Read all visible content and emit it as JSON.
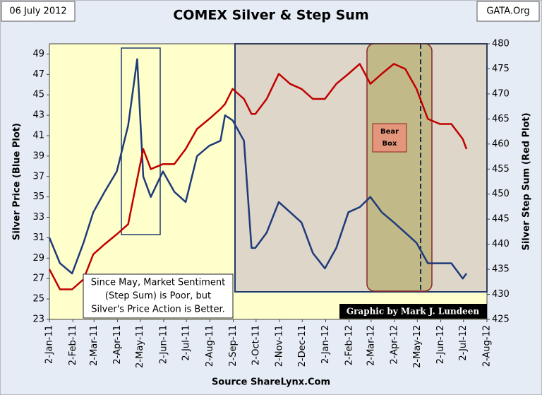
{
  "chart_data": {
    "type": "line",
    "title": "COMEX Silver & Step Sum",
    "date_label": "06 July 2012",
    "source_label": "GATA.Org",
    "x_label": "Source ShareLynx.Com",
    "y_label": "Silver Price (Blue Plot)",
    "y2_label": "Silver Step Sum (Red Plot)",
    "annotations": {
      "bear_box": [
        "Bear",
        "Box"
      ],
      "note": [
        "Since May, Market Sentiment",
        "(Step Sum) is Poor, but",
        "Silver's Price Action is Better."
      ],
      "credit": "Graphic by Mark J. Lundeen"
    },
    "x": [
      "2011-01-02",
      "2011-01-16",
      "2011-02-01",
      "2011-02-16",
      "2011-03-01",
      "2011-03-16",
      "2011-04-01",
      "2011-04-16",
      "2011-04-28",
      "2011-05-06",
      "2011-05-16",
      "2011-06-01",
      "2011-06-16",
      "2011-07-01",
      "2011-07-16",
      "2011-08-01",
      "2011-08-16",
      "2011-08-22",
      "2011-09-01",
      "2011-09-16",
      "2011-09-26",
      "2011-10-01",
      "2011-10-16",
      "2011-11-01",
      "2011-11-16",
      "2011-12-01",
      "2011-12-16",
      "2012-01-01",
      "2012-01-16",
      "2012-02-01",
      "2012-02-16",
      "2012-03-01",
      "2012-03-16",
      "2012-04-01",
      "2012-04-16",
      "2012-05-01",
      "2012-05-16",
      "2012-06-01",
      "2012-06-16",
      "2012-07-01",
      "2012-07-06"
    ],
    "series": [
      {
        "name": "Silver Price",
        "color": "#1f3a7a",
        "axis": "y",
        "values": [
          31,
          28.5,
          27.5,
          30.5,
          33.5,
          35.5,
          37.5,
          42,
          48.5,
          37,
          35,
          37.5,
          35.5,
          34.5,
          39,
          40,
          40.5,
          43,
          42.5,
          40.5,
          30,
          30,
          31.5,
          34.5,
          33.5,
          32.5,
          29.5,
          28,
          30,
          33.5,
          34,
          35,
          33.5,
          32.5,
          31.5,
          30.5,
          28.5,
          28.5,
          28.5,
          27,
          27.5
        ]
      },
      {
        "name": "Silver Step Sum",
        "color": "#c00000",
        "axis": "y2",
        "values": [
          435,
          431,
          431,
          433,
          438,
          440,
          442,
          444,
          453,
          459,
          455,
          456,
          456,
          459,
          463,
          465,
          467,
          468,
          471,
          469,
          466,
          466,
          469,
          474,
          472,
          471,
          469,
          469,
          472,
          474,
          476,
          472,
          474,
          476,
          475,
          471,
          465,
          464,
          464,
          461,
          459
        ]
      }
    ],
    "xlim": [
      "2011-01-02",
      "2012-08-02"
    ],
    "xticks": [
      {
        "value": "2011-01-02",
        "label": "2-Jan-11"
      },
      {
        "value": "2011-02-02",
        "label": "2-Feb-11"
      },
      {
        "value": "2011-03-02",
        "label": "2-Mar-11"
      },
      {
        "value": "2011-04-02",
        "label": "2-Apr-11"
      },
      {
        "value": "2011-05-02",
        "label": "2-May-11"
      },
      {
        "value": "2011-06-02",
        "label": "2-Jun-11"
      },
      {
        "value": "2011-07-02",
        "label": "2-Jul-11"
      },
      {
        "value": "2011-08-02",
        "label": "2-Aug-11"
      },
      {
        "value": "2011-09-02",
        "label": "2-Sep-11"
      },
      {
        "value": "2011-10-02",
        "label": "2-Oct-11"
      },
      {
        "value": "2011-11-02",
        "label": "2-Nov-11"
      },
      {
        "value": "2011-12-02",
        "label": "2-Dec-11"
      },
      {
        "value": "2012-01-02",
        "label": "2-Jan-12"
      },
      {
        "value": "2012-02-02",
        "label": "2-Feb-12"
      },
      {
        "value": "2012-03-02",
        "label": "2-Mar-12"
      },
      {
        "value": "2012-04-02",
        "label": "2-Apr-12"
      },
      {
        "value": "2012-05-02",
        "label": "2-May-12"
      },
      {
        "value": "2012-06-02",
        "label": "2-Jun-12"
      },
      {
        "value": "2012-07-02",
        "label": "2-Jul-12"
      },
      {
        "value": "2012-08-02",
        "label": "2-Aug-12"
      }
    ],
    "ylim": [
      23,
      50
    ],
    "yticks": [
      23,
      25,
      27,
      29,
      31,
      33,
      35,
      37,
      39,
      41,
      43,
      45,
      47,
      49
    ],
    "y2lim": [
      425,
      480
    ],
    "y2ticks": [
      425,
      430,
      435,
      440,
      445,
      450,
      455,
      460,
      465,
      470,
      475,
      480
    ],
    "grid": false
  }
}
